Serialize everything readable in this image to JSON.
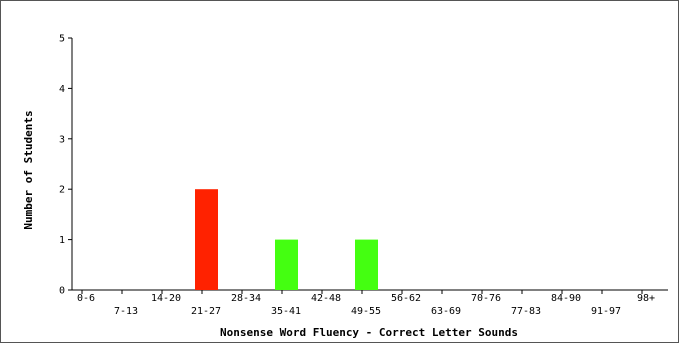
{
  "chart_data": {
    "type": "bar",
    "title": "",
    "xlabel": "Nonsense Word Fluency - Correct Letter Sounds",
    "ylabel": "Number of Students",
    "ylim": [
      0,
      5
    ],
    "yticks": [
      "0",
      "1",
      "2",
      "3",
      "4",
      "5"
    ],
    "grid": false,
    "legend": "none",
    "categories": [
      "0-6",
      "7-13",
      "14-20",
      "21-27",
      "28-34",
      "35-41",
      "42-48",
      "49-55",
      "56-62",
      "63-69",
      "70-76",
      "77-83",
      "84-90",
      "91-97",
      "98+"
    ],
    "values": [
      0,
      0,
      0,
      2,
      0,
      1,
      0,
      1,
      0,
      0,
      0,
      0,
      0,
      0,
      0
    ],
    "bar_colors": [
      "#ff2200",
      "#ff2200",
      "#ff2200",
      "#ff2200",
      "#44ff11",
      "#44ff11",
      "#44ff11",
      "#44ff11",
      "#44ff11",
      "#44ff11",
      "#44ff11",
      "#44ff11",
      "#44ff11",
      "#44ff11",
      "#44ff11"
    ]
  }
}
